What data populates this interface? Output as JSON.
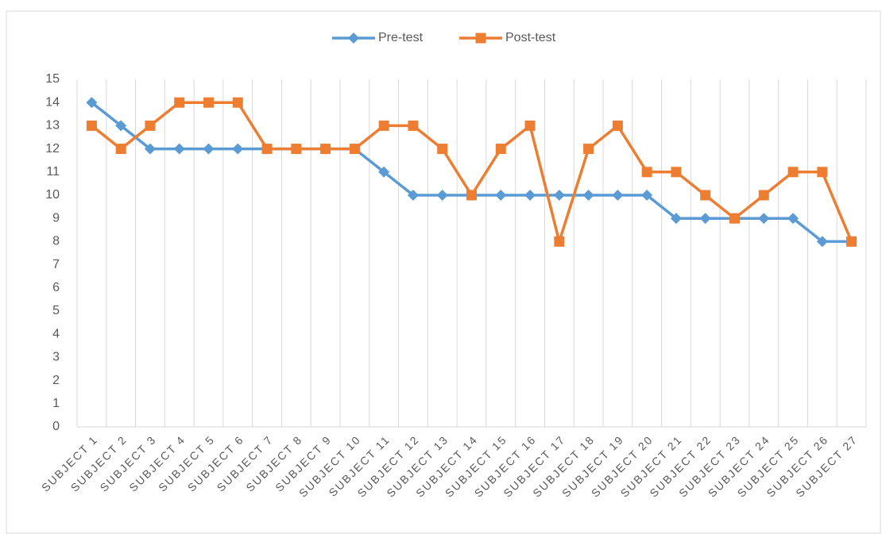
{
  "chart_data": {
    "type": "line",
    "categories": [
      "SUBJECT 1",
      "SUBJECT 2",
      "SUBJECT 3",
      "SUBJECT 4",
      "SUBJECT 5",
      "SUBJECT 6",
      "SUBJECT 7",
      "SUBJECT 8",
      "SUBJECT 9",
      "SUBJECT 10",
      "SUBJECT 11",
      "SUBJECT 12",
      "SUBJECT 13",
      "SUBJECT 14",
      "SUBJECT 15",
      "SUBJECT 16",
      "SUBJECT 17",
      "SUBJECT 18",
      "SUBJECT 19",
      "SUBJECT 20",
      "SUBJECT 21",
      "SUBJECT 22",
      "SUBJECT 23",
      "SUBJECT 24",
      "SUBJECT 25",
      "SUBJECT 26",
      "SUBJECT 27"
    ],
    "series": [
      {
        "name": "Pre-test",
        "color": "#5b9bd5",
        "marker": "diamond",
        "values": [
          14,
          13,
          12,
          12,
          12,
          12,
          12,
          12,
          12,
          12,
          11,
          10,
          10,
          10,
          10,
          10,
          10,
          10,
          10,
          10,
          9,
          9,
          9,
          9,
          9,
          8,
          8
        ]
      },
      {
        "name": "Post-test",
        "color": "#ed7d31",
        "marker": "square",
        "values": [
          13,
          12,
          13,
          14,
          14,
          14,
          12,
          12,
          12,
          12,
          13,
          13,
          12,
          10,
          12,
          13,
          8,
          12,
          13,
          11,
          11,
          10,
          9,
          10,
          11,
          11,
          8
        ]
      }
    ],
    "ylim": [
      0,
      15
    ],
    "yticks": [
      0,
      1,
      2,
      3,
      4,
      5,
      6,
      7,
      8,
      9,
      10,
      11,
      12,
      13,
      14,
      15
    ],
    "grid": "vertical",
    "legend": "top"
  }
}
